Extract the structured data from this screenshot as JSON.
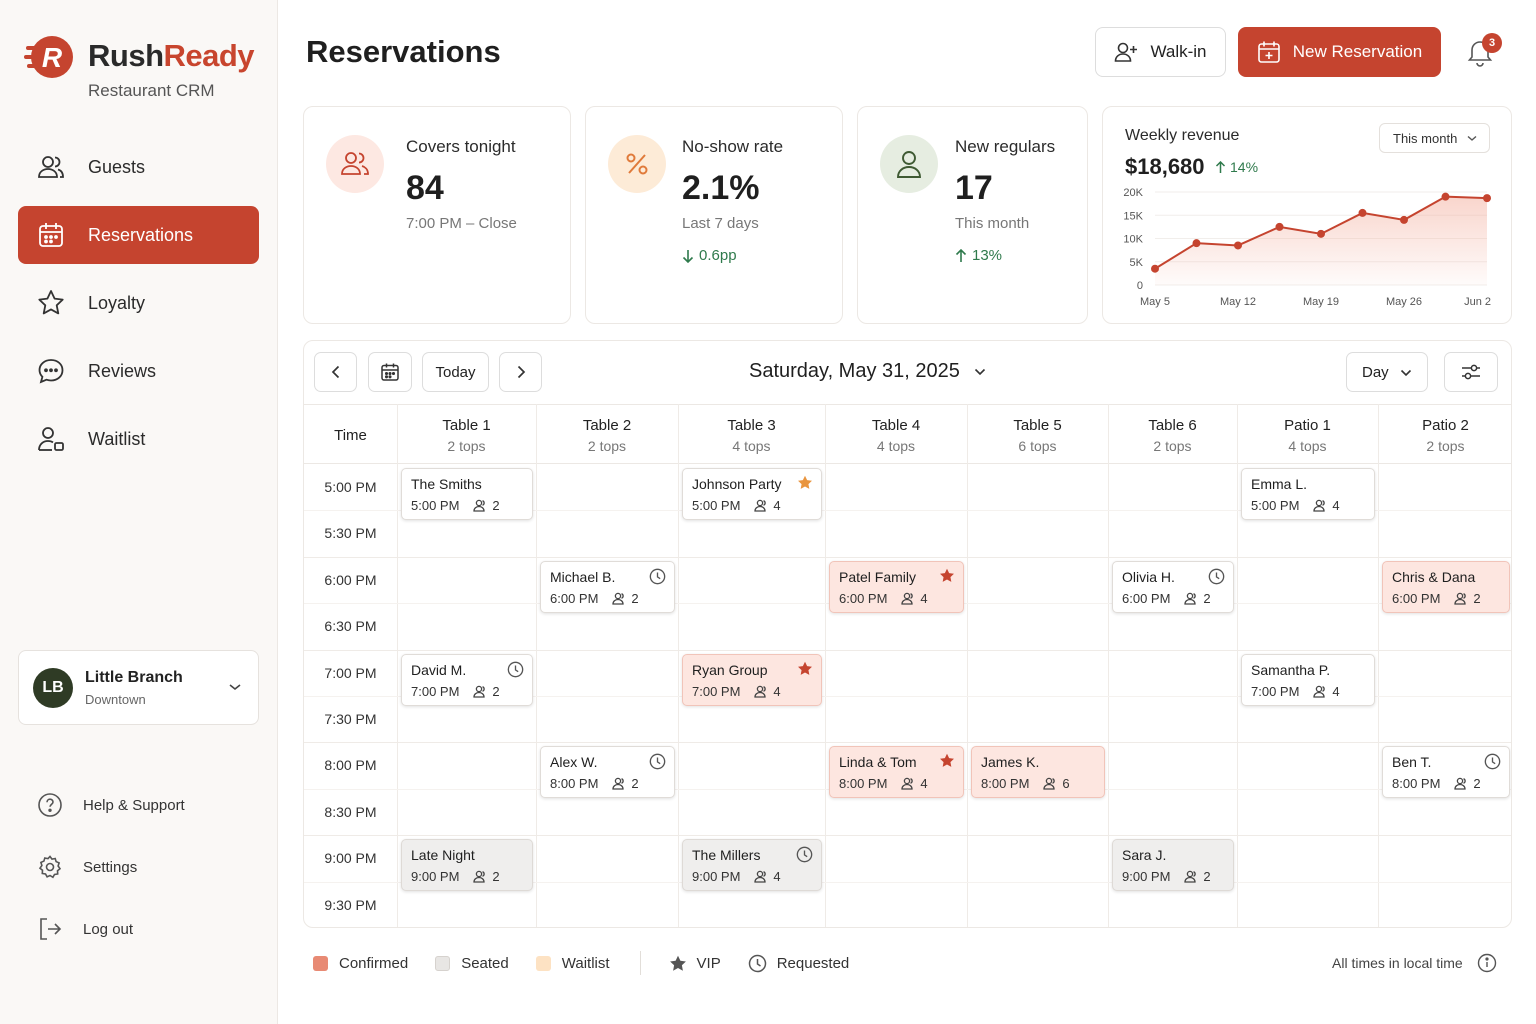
{
  "brand": {
    "name_first": "Rush",
    "name_second": "Ready",
    "subtitle": "Restaurant CRM",
    "logo_letter": "R"
  },
  "colors": {
    "accent": "#c5442f",
    "confirmed": "#f1a08c",
    "seated": "#e4e2e0",
    "waitlist": "#fde5c7",
    "positive": "#2f7a4c"
  },
  "nav": {
    "items": [
      {
        "label": "Guests",
        "icon": "users-icon"
      },
      {
        "label": "Reservations",
        "icon": "calendar-icon",
        "active": true
      },
      {
        "label": "Loyalty",
        "icon": "star-icon"
      },
      {
        "label": "Reviews",
        "icon": "chat-icon"
      },
      {
        "label": "Waitlist",
        "icon": "person-queue-icon"
      }
    ]
  },
  "branch": {
    "initials": "LB",
    "name": "Little Branch",
    "location": "Downtown"
  },
  "footer_nav": [
    {
      "label": "Help & Support",
      "icon": "help-icon"
    },
    {
      "label": "Settings",
      "icon": "gear-icon"
    },
    {
      "label": "Log out",
      "icon": "logout-icon"
    }
  ],
  "header": {
    "title": "Reservations",
    "walkin_label": "Walk-in",
    "new_label": "New Reservation",
    "notifications": "3"
  },
  "kpis": {
    "covers": {
      "label": "Covers tonight",
      "value": "84",
      "sub": "7:00 PM – Close"
    },
    "noshow": {
      "label": "No-show rate",
      "value": "2.1%",
      "sub": "Last 7 days",
      "delta": "0.6pp"
    },
    "regulars": {
      "label": "New regulars",
      "value": "17",
      "sub": "This month",
      "delta": "13%"
    }
  },
  "revenue": {
    "title": "Weekly revenue",
    "value": "$18,680",
    "delta": "14%",
    "range": "This month",
    "chart_data": {
      "type": "line",
      "y_ticks": [
        "20K",
        "15K",
        "10K",
        "5K",
        "0"
      ],
      "x_ticks": [
        "May 5",
        "May 12",
        "May 19",
        "May 26",
        "Jun 2"
      ],
      "ylim": [
        0,
        20000
      ],
      "x": [
        0,
        1,
        2,
        3,
        4,
        5,
        6,
        7,
        8
      ],
      "values": [
        3500,
        9000,
        8500,
        12500,
        11000,
        15500,
        14000,
        19000,
        18680
      ]
    }
  },
  "calendar": {
    "date": "Saturday, May 31, 2025",
    "today_label": "Today",
    "view": "Day",
    "time_header": "Time",
    "columns": [
      {
        "name": "Table 1",
        "cap": "2 tops"
      },
      {
        "name": "Table 2",
        "cap": "2 tops"
      },
      {
        "name": "Table 3",
        "cap": "4 tops"
      },
      {
        "name": "Table 4",
        "cap": "4 tops"
      },
      {
        "name": "Table 5",
        "cap": "6 tops"
      },
      {
        "name": "Table 6",
        "cap": "2 tops"
      },
      {
        "name": "Patio 1",
        "cap": "4 tops"
      },
      {
        "name": "Patio 2",
        "cap": "2 tops"
      }
    ],
    "times": [
      "5:00 PM",
      "5:30 PM",
      "6:00 PM",
      "6:30 PM",
      "7:00 PM",
      "7:30 PM",
      "8:00 PM",
      "8:30 PM",
      "9:00 PM",
      "9:30 PM"
    ],
    "reservations": [
      {
        "name": "The Smiths",
        "time": "5:00 PM",
        "party": "2",
        "col": 0,
        "slot": 0,
        "status": "plain",
        "flag": ""
      },
      {
        "name": "Johnson Party",
        "time": "5:00 PM",
        "party": "4",
        "col": 2,
        "slot": 0,
        "status": "plain",
        "flag": "vip-orange"
      },
      {
        "name": "Emma L.",
        "time": "5:00 PM",
        "party": "4",
        "col": 6,
        "slot": 0,
        "status": "plain",
        "flag": ""
      },
      {
        "name": "Michael B.",
        "time": "6:00 PM",
        "party": "2",
        "col": 1,
        "slot": 2,
        "status": "plain",
        "flag": "requested"
      },
      {
        "name": "Patel Family",
        "time": "6:00 PM",
        "party": "4",
        "col": 3,
        "slot": 2,
        "status": "confirmed",
        "flag": "vip"
      },
      {
        "name": "Olivia H.",
        "time": "6:00 PM",
        "party": "2",
        "col": 5,
        "slot": 2,
        "status": "plain",
        "flag": "requested"
      },
      {
        "name": "Chris & Dana",
        "time": "6:00 PM",
        "party": "2",
        "col": 7,
        "slot": 2,
        "status": "confirmed",
        "flag": ""
      },
      {
        "name": "David M.",
        "time": "7:00 PM",
        "party": "2",
        "col": 0,
        "slot": 4,
        "status": "plain",
        "flag": "requested"
      },
      {
        "name": "Ryan Group",
        "time": "7:00 PM",
        "party": "4",
        "col": 2,
        "slot": 4,
        "status": "confirmed",
        "flag": "vip"
      },
      {
        "name": "Samantha P.",
        "time": "7:00 PM",
        "party": "4",
        "col": 6,
        "slot": 4,
        "status": "plain",
        "flag": ""
      },
      {
        "name": "Alex W.",
        "time": "8:00 PM",
        "party": "2",
        "col": 1,
        "slot": 6,
        "status": "plain",
        "flag": "requested"
      },
      {
        "name": "Linda & Tom",
        "time": "8:00 PM",
        "party": "4",
        "col": 3,
        "slot": 6,
        "status": "confirmed",
        "flag": "vip"
      },
      {
        "name": "James K.",
        "time": "8:00 PM",
        "party": "6",
        "col": 4,
        "slot": 6,
        "status": "confirmed",
        "flag": ""
      },
      {
        "name": "Ben T.",
        "time": "8:00 PM",
        "party": "2",
        "col": 7,
        "slot": 6,
        "status": "plain",
        "flag": "requested"
      },
      {
        "name": "Late Night",
        "time": "9:00 PM",
        "party": "2",
        "col": 0,
        "slot": 8,
        "status": "seated",
        "flag": ""
      },
      {
        "name": "The Millers",
        "time": "9:00 PM",
        "party": "4",
        "col": 2,
        "slot": 8,
        "status": "seated",
        "flag": "requested"
      },
      {
        "name": "Sara J.",
        "time": "9:00 PM",
        "party": "2",
        "col": 5,
        "slot": 8,
        "status": "seated",
        "flag": ""
      }
    ]
  },
  "legend": {
    "confirmed": "Confirmed",
    "seated": "Seated",
    "waitlist": "Waitlist",
    "vip": "VIP",
    "requested": "Requested",
    "timezone": "All times in local time"
  }
}
